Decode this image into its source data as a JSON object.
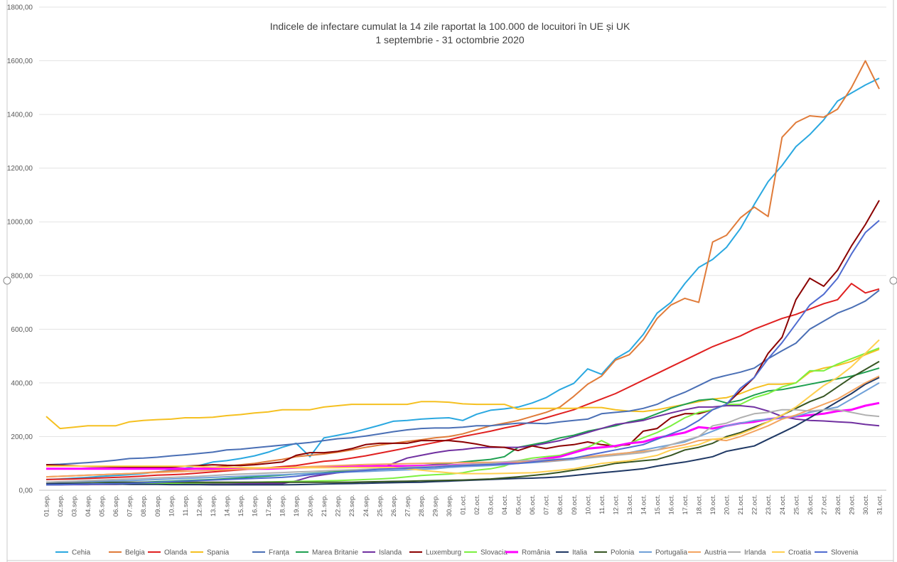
{
  "chart_data": {
    "type": "line",
    "title": "Indicele de infectare cumulat la 14 zile raportat la 100.000 de locuitori în UE și UK",
    "subtitle": "1 septembrie - 31 octombrie 2020",
    "categories": [
      "01.sep.",
      "02.sep.",
      "03.sep.",
      "04.sep.",
      "05.sep.",
      "06.sep.",
      "07.sep.",
      "08.sep.",
      "09.sep.",
      "10.sep.",
      "11.sep.",
      "12.sep.",
      "13.sep.",
      "14.sep.",
      "15.sep.",
      "16.sep.",
      "17.sep.",
      "18.sep.",
      "19.sep.",
      "20.sep.",
      "21.sep.",
      "22.sep.",
      "23.sep.",
      "24.sep.",
      "25.sep.",
      "26.sep.",
      "27.sep.",
      "28.sep.",
      "29.sep.",
      "30.sep.",
      "01.oct.",
      "02.oct.",
      "03.oct.",
      "04.oct.",
      "05.oct.",
      "06.oct.",
      "07.oct.",
      "08.oct.",
      "09.oct.",
      "10.oct.",
      "11.oct.",
      "12.oct.",
      "13.oct.",
      "14.oct.",
      "15.oct.",
      "16.oct.",
      "17.oct.",
      "18.oct.",
      "19.oct.",
      "20.oct.",
      "21.oct.",
      "22.oct.",
      "23.oct.",
      "24.oct.",
      "25.oct.",
      "26.oct.",
      "27.oct.",
      "28.oct.",
      "29.oct.",
      "30.oct.",
      "31.oct."
    ],
    "ylim": [
      0,
      1800
    ],
    "yticks": [
      {
        "value": 0,
        "label": "0,00"
      },
      {
        "value": 200,
        "label": "200,00"
      },
      {
        "value": 400,
        "label": "400,00"
      },
      {
        "value": 600,
        "label": "600,00"
      },
      {
        "value": 800,
        "label": "800,00"
      },
      {
        "value": 1000,
        "label": "1000,00"
      },
      {
        "value": 1200,
        "label": "1200,00"
      },
      {
        "value": 1400,
        "label": "1400,00"
      },
      {
        "value": 1600,
        "label": "1600,00"
      },
      {
        "value": 1800,
        "label": "1800,00"
      }
    ],
    "grid": true,
    "legend": "bottom",
    "series": [
      {
        "name": "Cehia",
        "color": "#2aa8e0",
        "values": [
          40,
          42,
          45,
          48,
          52,
          55,
          58,
          62,
          68,
          75,
          82,
          92,
          105,
          110,
          118,
          128,
          142,
          160,
          175,
          125,
          195,
          205,
          215,
          228,
          242,
          257,
          260,
          265,
          268,
          270,
          260,
          283,
          298,
          303,
          310,
          325,
          345,
          375,
          398,
          452,
          432,
          490,
          520,
          580,
          660,
          700,
          770,
          830,
          860,
          905,
          975,
          1065,
          1150,
          1210,
          1280,
          1325,
          1380,
          1450,
          1480,
          1510,
          1535
        ]
      },
      {
        "name": "Belgia",
        "color": "#e07b39",
        "values": [
          50,
          52,
          54,
          56,
          58,
          60,
          62,
          65,
          68,
          72,
          76,
          80,
          85,
          90,
          95,
          100,
          108,
          115,
          125,
          130,
          135,
          142,
          150,
          160,
          168,
          175,
          182,
          188,
          195,
          200,
          210,
          225,
          240,
          250,
          260,
          275,
          290,
          310,
          350,
          395,
          425,
          485,
          505,
          560,
          640,
          690,
          715,
          700,
          925,
          950,
          1015,
          1055,
          1020,
          1315,
          1370,
          1395,
          1390,
          1420,
          1500,
          1600,
          1495
        ]
      },
      {
        "name": "Olanda",
        "color": "#e02020",
        "values": [
          40,
          41,
          42,
          44,
          46,
          48,
          50,
          53,
          56,
          58,
          60,
          64,
          68,
          72,
          76,
          80,
          84,
          88,
          92,
          100,
          108,
          112,
          120,
          128,
          138,
          148,
          158,
          168,
          178,
          188,
          200,
          210,
          220,
          232,
          242,
          255,
          270,
          285,
          300,
          320,
          340,
          360,
          385,
          410,
          435,
          460,
          485,
          510,
          535,
          555,
          575,
          600,
          620,
          640,
          655,
          675,
          695,
          710,
          770,
          735,
          750
        ]
      },
      {
        "name": "Spania",
        "color": "#f5c020",
        "values": [
          275,
          230,
          235,
          240,
          240,
          240,
          255,
          260,
          263,
          265,
          270,
          270,
          272,
          278,
          282,
          288,
          292,
          300,
          300,
          300,
          310,
          315,
          320,
          320,
          320,
          320,
          320,
          330,
          330,
          328,
          322,
          320,
          320,
          320,
          302,
          305,
          305,
          305,
          305,
          308,
          308,
          300,
          295,
          293,
          300,
          310,
          320,
          330,
          340,
          345,
          360,
          380,
          395,
          395,
          400,
          440,
          455,
          465,
          480,
          505,
          525
        ]
      },
      {
        "name": "Franța",
        "color": "#4a6fb5",
        "values": [
          95,
          97,
          100,
          103,
          107,
          112,
          118,
          120,
          123,
          128,
          132,
          137,
          142,
          150,
          153,
          158,
          163,
          168,
          173,
          178,
          185,
          192,
          195,
          202,
          210,
          218,
          225,
          230,
          232,
          232,
          235,
          240,
          240,
          245,
          250,
          250,
          248,
          255,
          260,
          265,
          285,
          290,
          295,
          305,
          320,
          345,
          365,
          390,
          415,
          428,
          440,
          455,
          490,
          520,
          548,
          600,
          630,
          660,
          680,
          705,
          745
        ]
      },
      {
        "name": "Marea Britanie",
        "color": "#1ea050",
        "values": [
          20,
          21,
          22,
          23,
          25,
          26,
          28,
          30,
          32,
          34,
          36,
          38,
          40,
          43,
          46,
          50,
          53,
          56,
          60,
          63,
          66,
          70,
          73,
          76,
          80,
          84,
          88,
          92,
          96,
          100,
          105,
          110,
          115,
          125,
          160,
          170,
          180,
          195,
          205,
          220,
          230,
          240,
          255,
          265,
          285,
          305,
          320,
          335,
          340,
          325,
          335,
          355,
          370,
          375,
          385,
          395,
          405,
          415,
          425,
          440,
          455
        ]
      },
      {
        "name": "Islanda",
        "color": "#7030a0",
        "values": [
          20,
          20,
          21,
          21,
          22,
          22,
          23,
          23,
          24,
          24,
          25,
          25,
          25,
          25,
          25,
          25,
          25,
          25,
          35,
          50,
          58,
          65,
          70,
          75,
          80,
          100,
          120,
          130,
          140,
          148,
          152,
          158,
          160,
          160,
          160,
          165,
          175,
          185,
          200,
          215,
          230,
          245,
          252,
          260,
          275,
          288,
          300,
          310,
          310,
          315,
          315,
          310,
          295,
          275,
          265,
          260,
          258,
          255,
          252,
          245,
          240
        ]
      },
      {
        "name": "Luxemburg",
        "color": "#8b0000",
        "values": [
          95,
          93,
          91,
          89,
          88,
          87,
          86,
          86,
          86,
          86,
          90,
          92,
          95,
          93,
          92,
          95,
          100,
          105,
          130,
          140,
          140,
          145,
          155,
          170,
          175,
          175,
          175,
          185,
          185,
          185,
          180,
          172,
          162,
          160,
          148,
          165,
          155,
          165,
          170,
          180,
          170,
          165,
          170,
          220,
          230,
          270,
          285,
          285,
          300,
          320,
          370,
          420,
          510,
          570,
          710,
          790,
          760,
          820,
          910,
          990,
          1080
        ]
      },
      {
        "name": "Slovacia",
        "color": "#7cf040",
        "values": [
          22,
          22,
          23,
          23,
          24,
          24,
          25,
          25,
          26,
          26,
          27,
          27,
          28,
          28,
          29,
          30,
          31,
          32,
          33,
          34,
          35,
          36,
          38,
          40,
          42,
          45,
          50,
          55,
          58,
          60,
          65,
          75,
          80,
          90,
          110,
          120,
          125,
          130,
          145,
          160,
          185,
          160,
          175,
          195,
          215,
          240,
          270,
          290,
          300,
          320,
          320,
          345,
          360,
          385,
          400,
          445,
          445,
          470,
          490,
          510,
          530
        ]
      },
      {
        "name": "România",
        "color": "#ff00ff",
        "values": [
          80,
          80,
          80,
          80,
          80,
          80,
          80,
          80,
          80,
          80,
          80,
          80,
          80,
          80,
          80,
          80,
          80,
          82,
          84,
          86,
          88,
          88,
          88,
          89,
          90,
          90,
          90,
          91,
          92,
          93,
          95,
          97,
          98,
          100,
          102,
          110,
          118,
          125,
          140,
          155,
          160,
          165,
          175,
          180,
          195,
          205,
          215,
          235,
          230,
          240,
          250,
          255,
          265,
          270,
          275,
          280,
          285,
          295,
          300,
          315,
          325
        ]
      },
      {
        "name": "Italia",
        "color": "#1f3864",
        "values": [
          25,
          25,
          24,
          24,
          23,
          23,
          22,
          22,
          22,
          21,
          21,
          21,
          20,
          20,
          20,
          20,
          20,
          20,
          21,
          22,
          23,
          24,
          25,
          26,
          27,
          28,
          29,
          30,
          32,
          34,
          36,
          38,
          40,
          42,
          44,
          45,
          47,
          50,
          55,
          60,
          65,
          70,
          75,
          80,
          90,
          98,
          105,
          115,
          125,
          145,
          155,
          165,
          190,
          215,
          240,
          270,
          300,
          330,
          360,
          395,
          420
        ]
      },
      {
        "name": "Polonia",
        "color": "#375623",
        "values": [
          30,
          30,
          30,
          30,
          30,
          30,
          30,
          30,
          30,
          30,
          30,
          30,
          30,
          30,
          30,
          30,
          30,
          30,
          30,
          30,
          30,
          30,
          30,
          31,
          32,
          33,
          34,
          35,
          36,
          37,
          38,
          40,
          42,
          46,
          50,
          55,
          60,
          67,
          75,
          82,
          90,
          100,
          105,
          110,
          115,
          130,
          150,
          160,
          175,
          200,
          215,
          235,
          255,
          280,
          305,
          330,
          350,
          385,
          420,
          450,
          480
        ]
      },
      {
        "name": "Portugalia",
        "color": "#6fa0d8",
        "values": [
          30,
          31,
          32,
          33,
          34,
          35,
          36,
          38,
          40,
          42,
          44,
          46,
          48,
          50,
          52,
          54,
          56,
          58,
          60,
          62,
          64,
          66,
          68,
          70,
          72,
          74,
          76,
          78,
          80,
          85,
          88,
          90,
          92,
          95,
          100,
          103,
          106,
          110,
          115,
          122,
          130,
          135,
          140,
          150,
          160,
          170,
          180,
          200,
          220,
          240,
          250,
          260,
          265,
          270,
          275,
          290,
          300,
          310,
          340,
          370,
          400
        ]
      },
      {
        "name": "Austria",
        "color": "#f4a460",
        "values": [
          50,
          52,
          54,
          56,
          58,
          60,
          62,
          64,
          66,
          68,
          70,
          72,
          74,
          76,
          78,
          80,
          82,
          84,
          86,
          88,
          90,
          92,
          94,
          96,
          97,
          98,
          99,
          100,
          101,
          102,
          103,
          104,
          104,
          105,
          105,
          106,
          108,
          112,
          118,
          125,
          130,
          135,
          140,
          145,
          150,
          160,
          170,
          185,
          190,
          185,
          200,
          220,
          240,
          265,
          280,
          300,
          320,
          340,
          370,
          400,
          425
        ]
      },
      {
        "name": "Irlanda",
        "color": "#b0b0b0",
        "values": [
          30,
          32,
          34,
          36,
          38,
          40,
          42,
          44,
          46,
          48,
          50,
          52,
          55,
          58,
          60,
          62,
          64,
          66,
          68,
          70,
          72,
          74,
          76,
          78,
          80,
          83,
          86,
          88,
          90,
          92,
          95,
          98,
          100,
          105,
          110,
          112,
          114,
          116,
          118,
          120,
          125,
          130,
          135,
          140,
          150,
          170,
          185,
          200,
          240,
          250,
          270,
          285,
          290,
          300,
          300,
          295,
          300,
          300,
          290,
          280,
          275
        ]
      },
      {
        "name": "Croatia",
        "color": "#ffd050",
        "values": [
          90,
          90,
          90,
          90,
          90,
          90,
          90,
          90,
          90,
          90,
          90,
          88,
          86,
          85,
          85,
          84,
          84,
          84,
          84,
          84,
          84,
          84,
          85,
          85,
          85,
          85,
          80,
          75,
          70,
          65,
          62,
          62,
          62,
          63,
          64,
          65,
          70,
          75,
          80,
          90,
          100,
          105,
          110,
          120,
          130,
          150,
          160,
          170,
          190,
          195,
          210,
          230,
          255,
          280,
          310,
          350,
          390,
          420,
          460,
          510,
          560
        ]
      },
      {
        "name": "Slovenia",
        "color": "#4f6bd0",
        "values": [
          20,
          21,
          22,
          23,
          24,
          25,
          26,
          28,
          30,
          32,
          34,
          36,
          38,
          40,
          42,
          44,
          46,
          48,
          52,
          58,
          62,
          66,
          70,
          74,
          78,
          80,
          82,
          84,
          86,
          90,
          92,
          94,
          96,
          98,
          100,
          105,
          110,
          115,
          120,
          130,
          140,
          150,
          160,
          170,
          190,
          210,
          230,
          260,
          300,
          320,
          380,
          420,
          490,
          550,
          620,
          690,
          730,
          790,
          880,
          960,
          1005
        ]
      }
    ]
  }
}
